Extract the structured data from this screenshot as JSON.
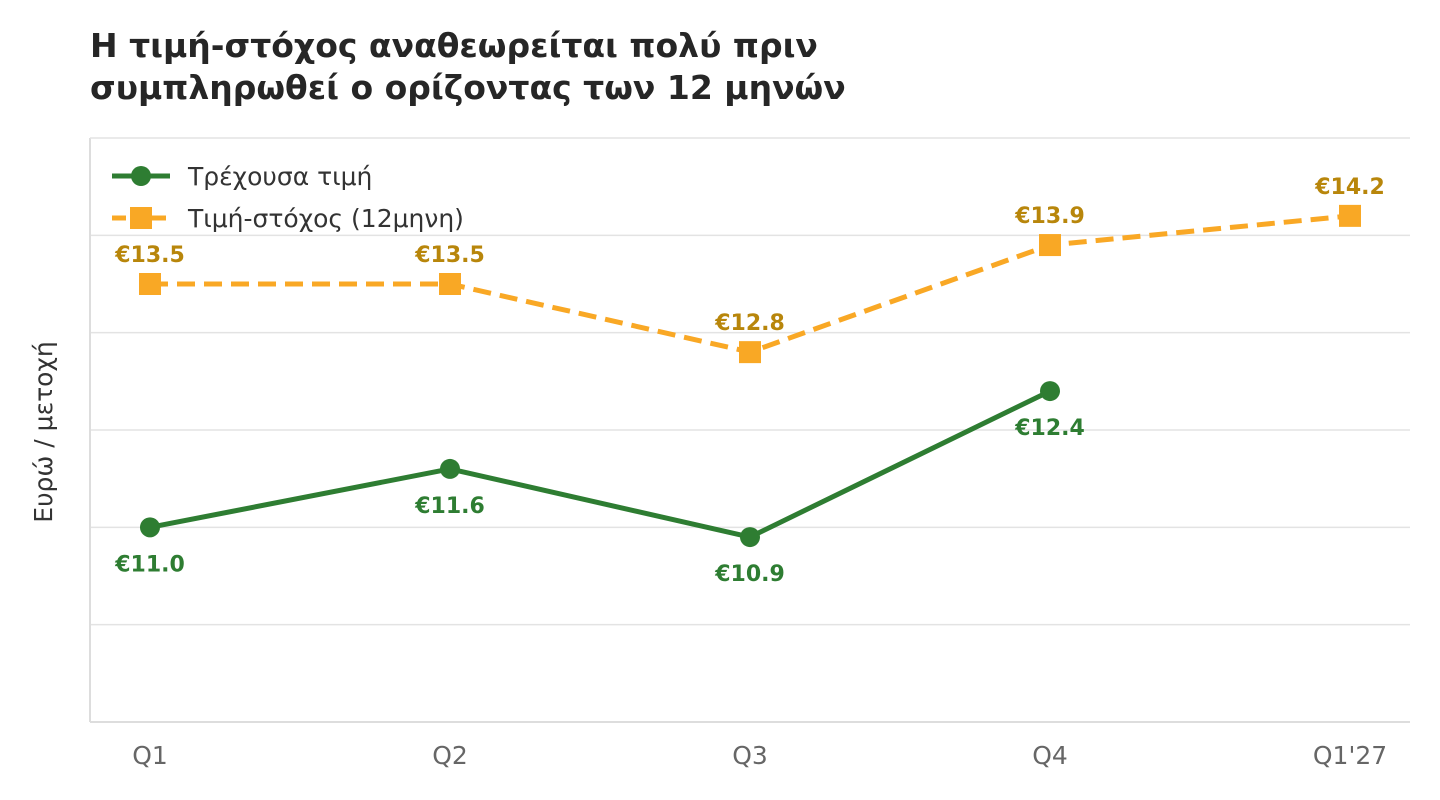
{
  "title_lines": [
    "Η τιμή-στόχος αναθεωρείται πολύ πριν",
    "συμπληρωθεί ο ορίζοντας των 12 μηνών"
  ],
  "chart_data": {
    "type": "line",
    "title": "Η τιμή-στόχος αναθεωρείται πολύ πριν συμπληρωθεί ο ορίζοντας των 12 μηνών",
    "xlabel": "",
    "ylabel": "Ευρώ / μετοχή",
    "categories": [
      "Q1",
      "Q2",
      "Q3",
      "Q4",
      "Q1'27"
    ],
    "ylim": [
      9.0,
      15.0
    ],
    "grid": true,
    "legend_position": "top-left",
    "series": [
      {
        "name": "Τρέχουσα τιμή",
        "values": [
          11.0,
          11.6,
          10.9,
          12.4,
          null
        ],
        "labels": [
          "€11.0",
          "€11.6",
          "€10.9",
          "€12.4",
          null
        ],
        "color": "#2e7d32",
        "label_color": "#2e7d32",
        "marker": "circle",
        "line_style": "solid",
        "label_position": "below"
      },
      {
        "name": "Τιμή-στόχος (12μηνη)",
        "values": [
          13.5,
          13.5,
          12.8,
          13.9,
          14.2
        ],
        "labels": [
          "€13.5",
          "€13.5",
          "€12.8",
          "€13.9",
          "€14.2"
        ],
        "color": "#f9a825",
        "label_color": "#b8860b",
        "marker": "square",
        "line_style": "dashed",
        "label_position": "above"
      }
    ]
  }
}
